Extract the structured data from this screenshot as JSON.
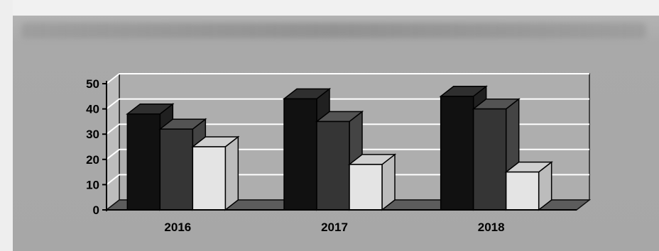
{
  "chart_data": {
    "type": "bar",
    "categories": [
      "2016",
      "2017",
      "2018"
    ],
    "series": [
      {
        "values": [
          38,
          44,
          45
        ],
        "color": "#111111"
      },
      {
        "values": [
          32,
          35,
          40
        ],
        "color": "#353535"
      },
      {
        "values": [
          25,
          18,
          15
        ],
        "color": "#e4e4e4"
      }
    ],
    "ylim": [
      0,
      50
    ],
    "yticks": [
      0,
      10,
      20,
      30,
      40,
      50
    ],
    "grid": true,
    "style": "3d-clustered-column",
    "colors": {
      "wall": "#aeaeae",
      "floor": "#5c5c5c",
      "gridline": "#ffffff",
      "axis": "#000000"
    }
  }
}
